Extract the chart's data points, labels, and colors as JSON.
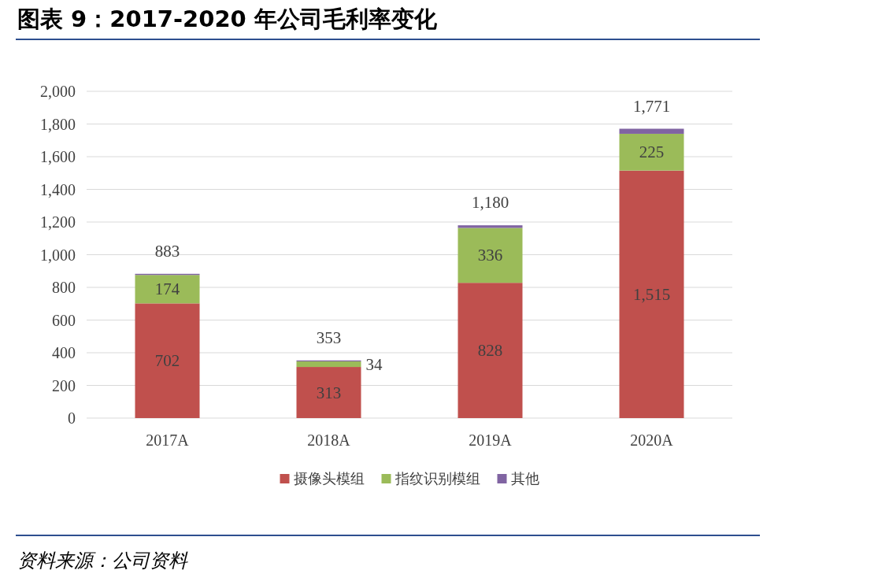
{
  "chart_data": {
    "type": "bar",
    "stacked": true,
    "title": "图表 9：2017-2020 年公司毛利率变化",
    "categories": [
      "2017A",
      "2018A",
      "2019A",
      "2020A"
    ],
    "series": [
      {
        "name": "摄像头模组",
        "color": "#c0504d",
        "values": [
          702,
          313,
          828,
          1515
        ],
        "value_labels": [
          "702",
          "313",
          "828",
          "1,515"
        ]
      },
      {
        "name": "指纹识别模组",
        "color": "#9bbb59",
        "values": [
          174,
          34,
          336,
          225
        ],
        "value_labels": [
          "174",
          "34",
          "336",
          "225"
        ]
      },
      {
        "name": "其他",
        "color": "#8064a2",
        "values": [
          7,
          6,
          16,
          31
        ]
      }
    ],
    "totals": [
      "883",
      "353",
      "1,180",
      "1,771"
    ],
    "ylim": [
      0,
      2000
    ],
    "yticks": [
      {
        "value": 0,
        "label": "0"
      },
      {
        "value": 200,
        "label": "200"
      },
      {
        "value": 400,
        "label": "400"
      },
      {
        "value": 600,
        "label": "600"
      },
      {
        "value": 800,
        "label": "800"
      },
      {
        "value": 1000,
        "label": "1,000"
      },
      {
        "value": 1200,
        "label": "1,200"
      },
      {
        "value": 1400,
        "label": "1,400"
      },
      {
        "value": 1600,
        "label": "1,600"
      },
      {
        "value": 1800,
        "label": "1,800"
      },
      {
        "value": 2000,
        "label": "2,000"
      }
    ],
    "grid": "y",
    "legend": "bottom",
    "annotations": [
      "资料来源：公司资料"
    ]
  }
}
